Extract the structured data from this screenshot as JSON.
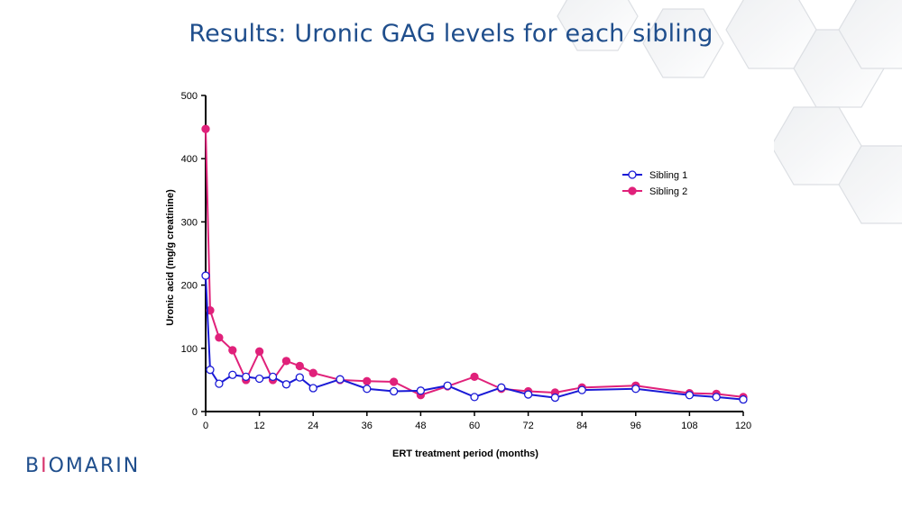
{
  "slide": {
    "title": "Results: Uronic GAG levels for each sibling",
    "logo": "BIOMARIN"
  },
  "colors": {
    "title": "#1f4e8c",
    "sibling1": "#1a1ad6",
    "sibling2": "#e0217a",
    "logo": "#1f4e8c"
  },
  "chart_data": {
    "type": "line",
    "title": "",
    "xlabel": "ERT  treatment period  (months)",
    "ylabel": "Uronic  acid  (mg/g creatinine)",
    "xlim": [
      0,
      120
    ],
    "ylim": [
      0,
      500
    ],
    "xticks": [
      0,
      12,
      24,
      36,
      48,
      60,
      72,
      84,
      96,
      108,
      120
    ],
    "yticks": [
      0,
      100,
      200,
      300,
      400,
      500
    ],
    "grid": false,
    "legend_position": "top-right",
    "series": [
      {
        "name": "Sibling  1",
        "marker": "open-circle",
        "color": "#1a1ad6",
        "x": [
          0,
          1,
          3,
          6,
          9,
          12,
          15,
          18,
          21,
          24,
          30,
          36,
          42,
          48,
          54,
          60,
          66,
          72,
          78,
          84,
          96,
          108,
          114,
          120
        ],
        "y": [
          215,
          66,
          44,
          58,
          55,
          52,
          55,
          43,
          54,
          37,
          51,
          36,
          32,
          33,
          41,
          23,
          38,
          27,
          22,
          34,
          36,
          26,
          23,
          19
        ]
      },
      {
        "name": "Sibling  2",
        "marker": "filled-circle",
        "color": "#e0217a",
        "x": [
          0,
          1,
          3,
          6,
          9,
          12,
          15,
          18,
          21,
          24,
          30,
          36,
          42,
          48,
          54,
          60,
          66,
          72,
          78,
          84,
          96,
          108,
          114,
          120
        ],
        "y": [
          447,
          160,
          117,
          97,
          50,
          95,
          50,
          80,
          72,
          61,
          50,
          48,
          47,
          26,
          40,
          55,
          36,
          32,
          30,
          38,
          41,
          29,
          28,
          23
        ]
      }
    ]
  }
}
